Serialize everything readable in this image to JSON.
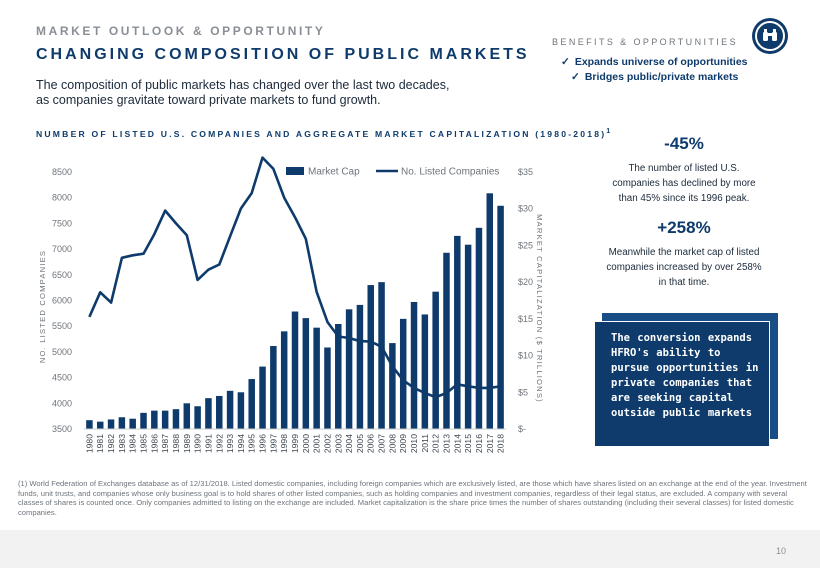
{
  "header": {
    "section_label": "MARKET OUTLOOK & OPPORTUNITY",
    "title": "CHANGING COMPOSITION OF PUBLIC MARKETS",
    "intro": "The composition of public markets has changed over the last two decades, as companies gravitate toward private markets to fund growth."
  },
  "benefits": {
    "label": "BENEFITS & OPPORTUNITIES",
    "items": [
      "Expands universe of opportunities",
      "Bridges public/private markets"
    ],
    "check_symbol": "✓",
    "emblem_icon": "binoculars-icon"
  },
  "chart_heading": {
    "text": "NUMBER OF LISTED U.S. COMPANIES AND AGGREGATE MARKET CAPITALIZATION (1980-2018)",
    "footnote_marker": "1"
  },
  "chart_data": {
    "type": "bar",
    "title": "NUMBER OF LISTED U.S. COMPANIES AND AGGREGATE MARKET CAPITALIZATION (1980-2018)",
    "categories": [
      "1980",
      "1981",
      "1982",
      "1983",
      "1984",
      "1985",
      "1986",
      "1987",
      "1988",
      "1989",
      "1990",
      "1991",
      "1992",
      "1993",
      "1994",
      "1995",
      "1996",
      "1997",
      "1998",
      "1999",
      "2000",
      "2001",
      "2002",
      "2003",
      "2004",
      "2005",
      "2006",
      "2007",
      "2008",
      "2009",
      "2010",
      "2011",
      "2012",
      "2013",
      "2014",
      "2015",
      "2016",
      "2017",
      "2018"
    ],
    "series": [
      {
        "name": "Market Cap",
        "type": "bar",
        "axis": "right",
        "color": "#0e3b6b",
        "values": [
          1.2,
          1.0,
          1.3,
          1.6,
          1.4,
          2.2,
          2.5,
          2.5,
          2.7,
          3.5,
          3.1,
          4.2,
          4.5,
          5.2,
          5.0,
          6.8,
          8.5,
          11.3,
          13.3,
          16.0,
          15.1,
          13.8,
          11.1,
          14.3,
          16.3,
          16.9,
          19.6,
          20.0,
          11.7,
          15.0,
          17.3,
          15.6,
          18.7,
          24.0,
          26.3,
          25.1,
          27.4,
          32.1,
          30.4
        ]
      },
      {
        "name": "No. Listed Companies",
        "type": "line",
        "axis": "left",
        "color": "#0e3b6b",
        "values": [
          5680,
          6160,
          5960,
          6830,
          6880,
          6910,
          7290,
          7750,
          7500,
          7270,
          6400,
          6600,
          6700,
          7250,
          7790,
          8090,
          8780,
          8560,
          8000,
          7620,
          7200,
          6170,
          5580,
          5300,
          5270,
          5210,
          5200,
          5100,
          4720,
          4450,
          4300,
          4200,
          4120,
          4200,
          4370,
          4330,
          4300,
          4300,
          4330
        ]
      }
    ],
    "xlabel": "",
    "ylabel": "NO. LISTED COMPANIES",
    "ylabel_right": "MARKET CAPITALIZATION ($ TRILLIONS)",
    "ylim": [
      3500,
      8500
    ],
    "ylim_right": [
      0,
      35
    ],
    "y_ticks": [
      "3500",
      "4000",
      "4500",
      "5000",
      "5500",
      "6000",
      "6500",
      "7000",
      "7500",
      "8000",
      "8500"
    ],
    "y_tick_values": [
      3500,
      4000,
      4500,
      5000,
      5500,
      6000,
      6500,
      7000,
      7500,
      8000,
      8500
    ],
    "y_right_ticks": [
      "$-",
      "$5",
      "$10",
      "$15",
      "$20",
      "$25",
      "$30",
      "$35"
    ],
    "y_right_tick_values": [
      0,
      5,
      10,
      15,
      20,
      25,
      30,
      35
    ],
    "legend_position": "top",
    "grid": false
  },
  "stats": [
    {
      "value": "-45%",
      "description": "The number of listed U.S. companies has declined by more than 45% since its 1996 peak."
    },
    {
      "value": "+258%",
      "description": "Meanwhile the market cap of listed companies increased by over 258% in that time."
    }
  ],
  "callout": {
    "text": "The conversion expands HFRO's ability to pursue opportunities in private companies that are seeking capital outside public markets"
  },
  "footnote": "(1) World Federation of Exchanges database as of 12/31/2018. Listed domestic companies, including foreign companies which are exclusively listed, are those which have shares listed on an exchange at the end of the year. Investment funds, unit trusts, and companies whose only business goal is to hold shares of other listed companies, such as holding companies and investment companies, regardless of their legal status, are excluded. A company with several classes of shares is counted once. Only companies admitted to listing on the exchange are included. Market capitalization is the share price times the number of shares outstanding (including their several classes) for listed domestic companies.",
  "page_number": "10",
  "colors": {
    "brand_navy": "#0e3b6b",
    "muted_gray": "#8a8f96",
    "callout_shadow": "#184d86"
  }
}
